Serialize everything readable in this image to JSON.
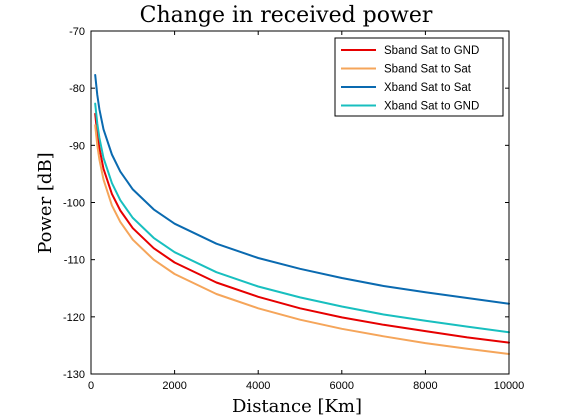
{
  "chart_data": {
    "type": "line",
    "title": "Change in received power",
    "xlabel": "Distance [Km]",
    "ylabel": "Power [dB]",
    "xlim": [
      0,
      10000
    ],
    "ylim": [
      -130,
      -70
    ],
    "xticks": [
      0,
      2000,
      4000,
      6000,
      8000,
      10000
    ],
    "yticks": [
      -130,
      -120,
      -110,
      -100,
      -90,
      -80,
      -70
    ],
    "grid": false,
    "legend_position": "top-right",
    "x": [
      100,
      150,
      200,
      300,
      500,
      700,
      1000,
      1500,
      2000,
      3000,
      4000,
      5000,
      6000,
      7000,
      8000,
      9000,
      10000
    ],
    "series": [
      {
        "name": "Sband Sat to GND",
        "color": "#e60000",
        "values": [
          -84.5,
          -88.0,
          -90.5,
          -94.1,
          -98.5,
          -101.4,
          -104.5,
          -108.0,
          -110.5,
          -114.0,
          -116.5,
          -118.5,
          -120.1,
          -121.4,
          -122.5,
          -123.6,
          -124.5
        ]
      },
      {
        "name": "Sband Sat to Sat",
        "color": "#f5a55a",
        "values": [
          -86.5,
          -90.0,
          -92.5,
          -96.0,
          -100.5,
          -103.4,
          -106.5,
          -110.0,
          -112.5,
          -116.0,
          -118.5,
          -120.5,
          -122.1,
          -123.4,
          -124.6,
          -125.6,
          -126.5
        ]
      },
      {
        "name": "Xband Sat to Sat",
        "color": "#0a6ab0",
        "values": [
          -77.7,
          -81.2,
          -83.7,
          -87.2,
          -91.6,
          -94.6,
          -97.7,
          -101.2,
          -103.7,
          -107.2,
          -109.7,
          -111.6,
          -113.2,
          -114.6,
          -115.7,
          -116.7,
          -117.7
        ]
      },
      {
        "name": "Xband Sat to GND",
        "color": "#18bfbf",
        "values": [
          -82.7,
          -86.2,
          -88.7,
          -92.2,
          -96.6,
          -99.6,
          -102.7,
          -106.2,
          -108.7,
          -112.2,
          -114.7,
          -116.6,
          -118.2,
          -119.6,
          -120.7,
          -121.7,
          -122.7
        ]
      }
    ]
  }
}
